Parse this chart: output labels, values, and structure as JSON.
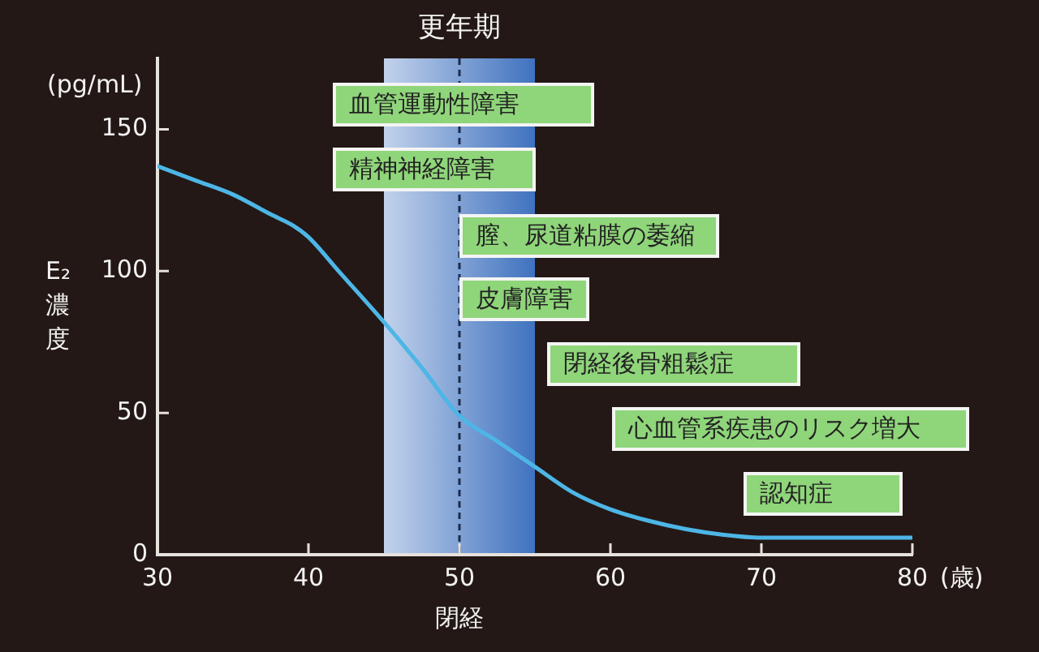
{
  "chart_data": {
    "type": "line",
    "xlabel": "(歳)",
    "ylabel": "E₂濃度",
    "annotations": [
      "(pg/mL)",
      "血管運動性障害",
      "精神神経障害",
      "膣、尿道粘膜の萎縮",
      "皮膚障害",
      "閉経後骨粗鬆症",
      "心血管系疾患のリスク増大",
      "認知症"
    ],
    "x": [
      30,
      32.5,
      35,
      37.5,
      39,
      40,
      42,
      45,
      47.5,
      50,
      52.5,
      55,
      57.5,
      60,
      62.5,
      65,
      67.5,
      70,
      75,
      80
    ],
    "series": [
      {
        "color": "#4db6e6",
        "values": [
          137,
          132,
          127,
          120,
          116,
          112,
          100,
          82,
          66,
          49,
          40,
          31,
          22,
          16,
          12,
          9,
          7,
          6,
          6,
          6
        ]
      }
    ],
    "xlim": [
      30,
      80
    ],
    "xticks": [
      30,
      40,
      50,
      60,
      70,
      80
    ],
    "ylim": [
      0,
      175
    ],
    "yticks": [
      0,
      50,
      100,
      150
    ],
    "bands": [
      {
        "axis": "x",
        "from": 45,
        "to": 55,
        "label": "更年期",
        "color": "#3f72bf"
      }
    ],
    "ref_lines": [
      {
        "axis": "x",
        "value": 50,
        "label": "閉経",
        "color": "#1c2a4a",
        "line_style": "dashed"
      }
    ],
    "legend": false
  }
}
